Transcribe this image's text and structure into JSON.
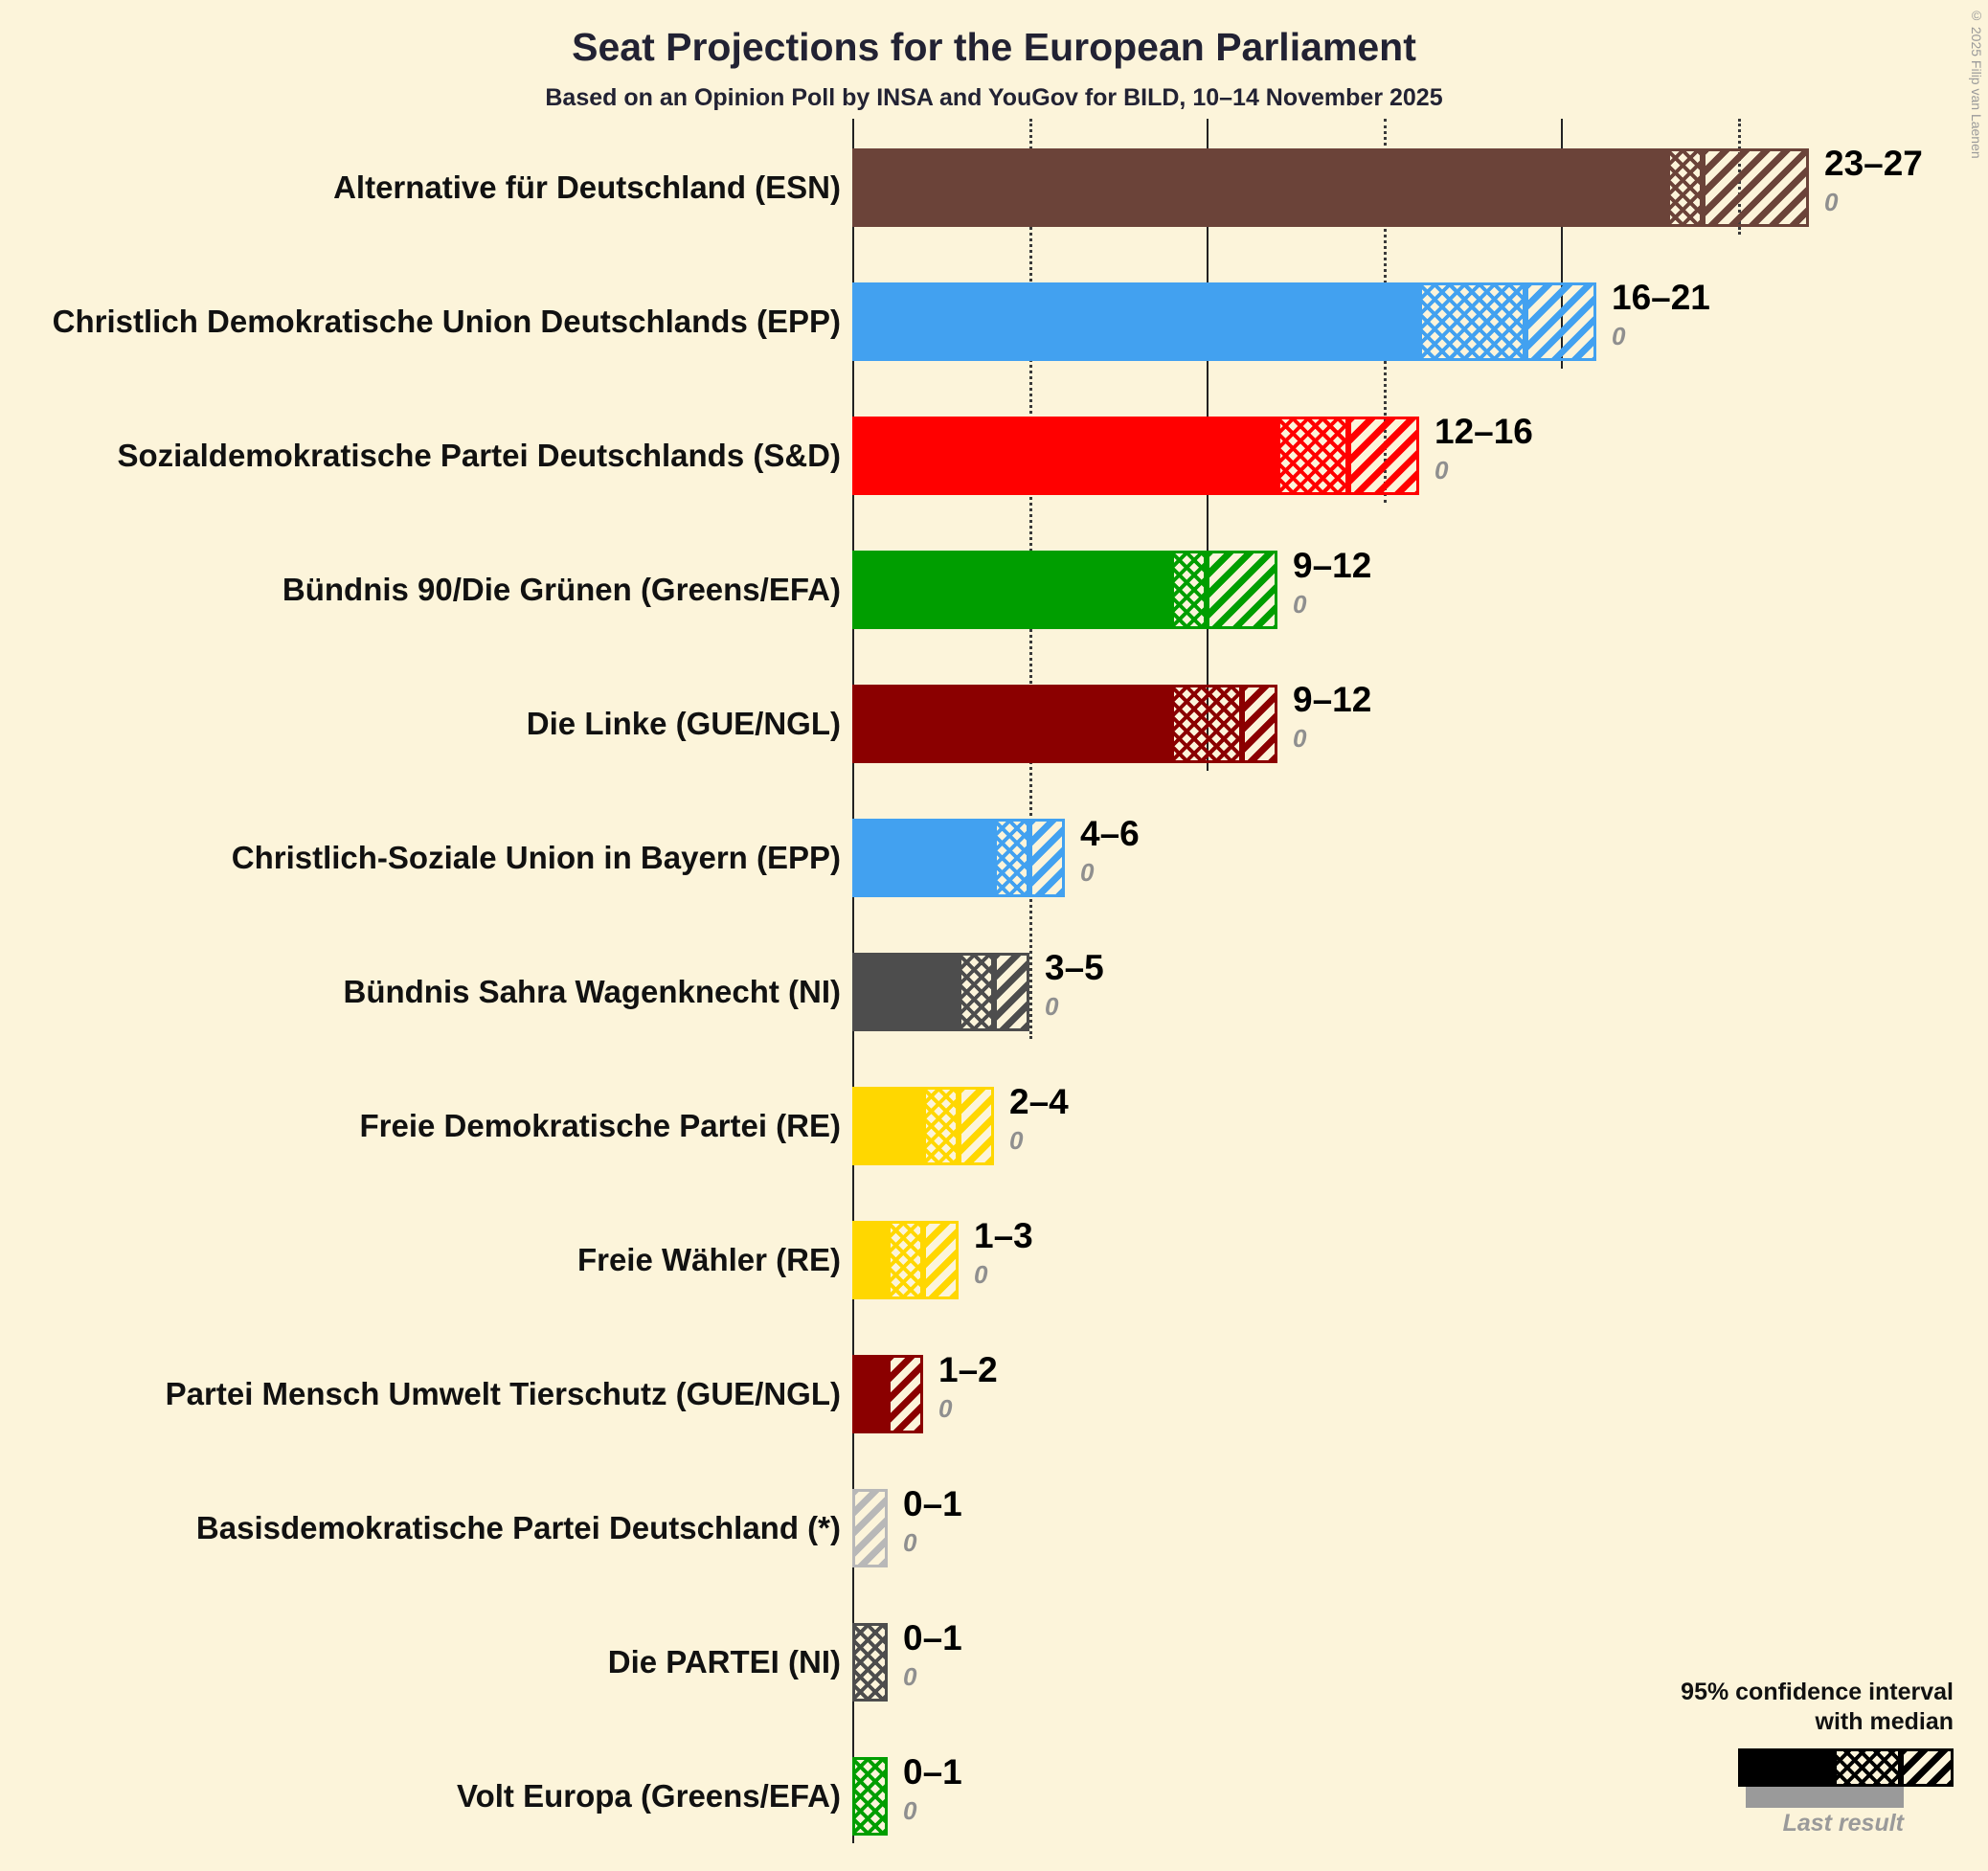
{
  "title": "Seat Projections for the European Parliament",
  "subtitle": "Based on an Opinion Poll by INSA and YouGov for BILD, 10–14 November 2025",
  "copyright": "© 2025 Filip van Laenen",
  "legend": {
    "line1": "95% confidence interval",
    "line2": "with median",
    "last_result_label": "Last result"
  },
  "chart_data": {
    "type": "bar",
    "orientation": "horizontal",
    "unit": "seats",
    "x_axis": {
      "min": 0,
      "max": 27,
      "solid_gridlines": [
        10,
        20
      ],
      "dotted_gridlines": [
        5,
        15,
        25
      ]
    },
    "series": [
      {
        "party": "Alternative für Deutschland (ESN)",
        "low": 23,
        "median": 24,
        "high": 27,
        "last_result": 0,
        "range_label": "23–27",
        "color": "#6b4339"
      },
      {
        "party": "Christlich Demokratische Union Deutschlands (EPP)",
        "low": 16,
        "median": 19,
        "high": 21,
        "last_result": 0,
        "range_label": "16–21",
        "color": "#42a1f0"
      },
      {
        "party": "Sozialdemokratische Partei Deutschlands (S&D)",
        "low": 12,
        "median": 14,
        "high": 16,
        "last_result": 0,
        "range_label": "12–16",
        "color": "#ff0000"
      },
      {
        "party": "Bündnis 90/Die Grünen (Greens/EFA)",
        "low": 9,
        "median": 10,
        "high": 12,
        "last_result": 0,
        "range_label": "9–12",
        "color": "#009e00"
      },
      {
        "party": "Die Linke (GUE/NGL)",
        "low": 9,
        "median": 11,
        "high": 12,
        "last_result": 0,
        "range_label": "9–12",
        "color": "#8b0000"
      },
      {
        "party": "Christlich-Soziale Union in Bayern (EPP)",
        "low": 4,
        "median": 5,
        "high": 6,
        "last_result": 0,
        "range_label": "4–6",
        "color": "#42a1f0"
      },
      {
        "party": "Bündnis Sahra Wagenknecht (NI)",
        "low": 3,
        "median": 4,
        "high": 5,
        "last_result": 0,
        "range_label": "3–5",
        "color": "#4d4d4d"
      },
      {
        "party": "Freie Demokratische Partei (RE)",
        "low": 2,
        "median": 3,
        "high": 4,
        "last_result": 0,
        "range_label": "2–4",
        "color": "#ffd700"
      },
      {
        "party": "Freie Wähler (RE)",
        "low": 1,
        "median": 2,
        "high": 3,
        "last_result": 0,
        "range_label": "1–3",
        "color": "#ffd700"
      },
      {
        "party": "Partei Mensch Umwelt Tierschutz (GUE/NGL)",
        "low": 1,
        "median": 1,
        "high": 2,
        "last_result": 0,
        "range_label": "1–2",
        "color": "#8b0000"
      },
      {
        "party": "Basisdemokratische Partei Deutschland (*)",
        "low": 0,
        "median": 0,
        "high": 1,
        "last_result": 0,
        "range_label": "0–1",
        "color": "#b8b8b8"
      },
      {
        "party": "Die PARTEI (NI)",
        "low": 0,
        "median": 1,
        "high": 1,
        "last_result": 0,
        "range_label": "0–1",
        "color": "#4d4d4d"
      },
      {
        "party": "Volt Europa (Greens/EFA)",
        "low": 0,
        "median": 1,
        "high": 1,
        "last_result": 0,
        "range_label": "0–1",
        "color": "#009e00"
      }
    ]
  }
}
